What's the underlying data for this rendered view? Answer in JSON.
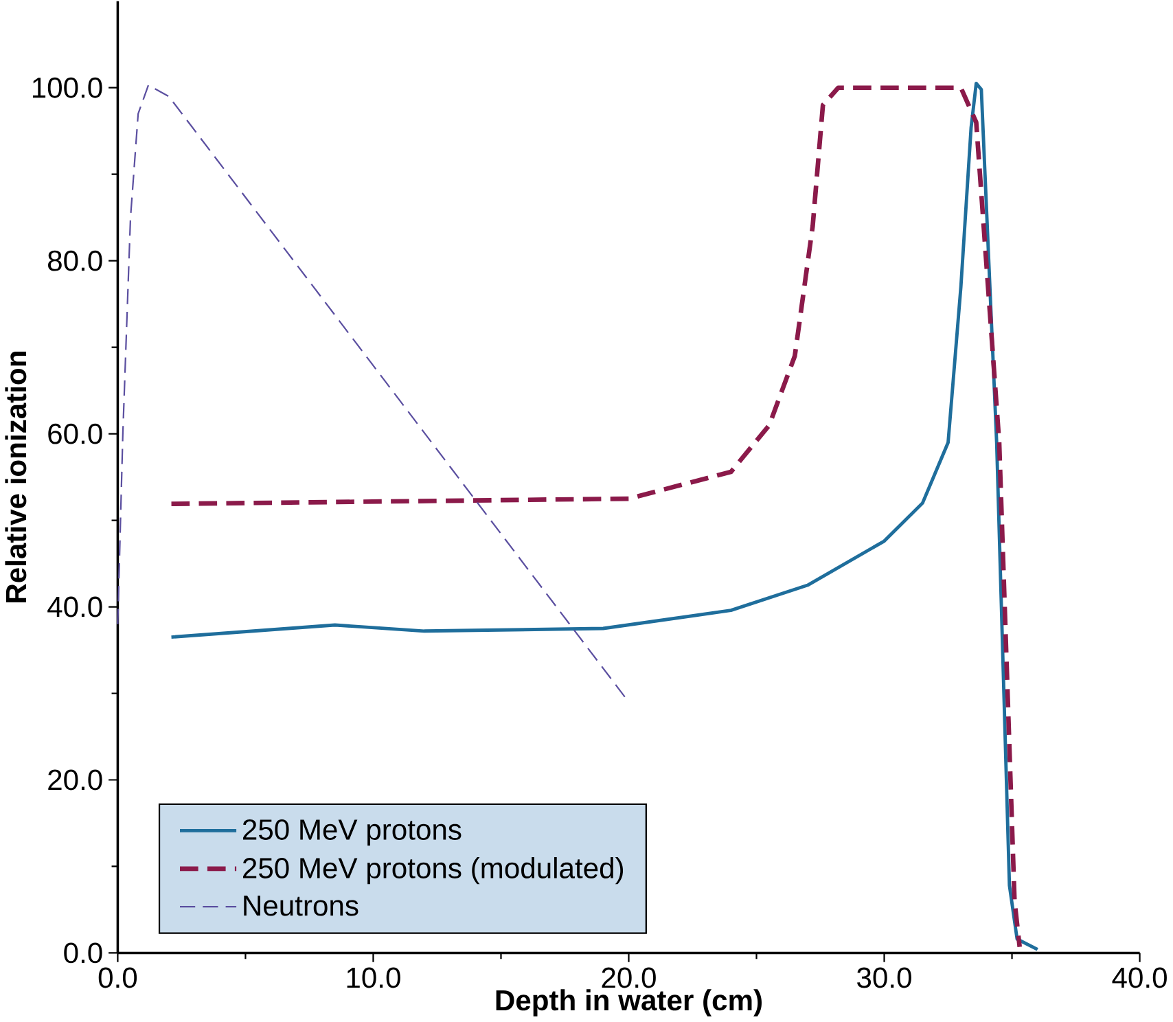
{
  "chart_data": {
    "type": "line",
    "xlabel": "Depth in water (cm)",
    "ylabel": "Relative ionization",
    "xlim": [
      0,
      40
    ],
    "ylim": [
      0,
      110
    ],
    "xticks": [
      {
        "value": 0,
        "label": "0.0"
      },
      {
        "value": 10,
        "label": "10.0"
      },
      {
        "value": 20,
        "label": "20.0"
      },
      {
        "value": 30,
        "label": "30.0"
      },
      {
        "value": 40,
        "label": "40.0"
      }
    ],
    "yticks": [
      {
        "value": 0,
        "label": "0.0"
      },
      {
        "value": 20,
        "label": "20.0"
      },
      {
        "value": 40,
        "label": "40.0"
      },
      {
        "value": 60,
        "label": "60.0"
      },
      {
        "value": 80,
        "label": "80.0"
      },
      {
        "value": 100,
        "label": "100.0"
      }
    ],
    "legend": "bottom left",
    "grid": false,
    "marker": "none",
    "series": [
      {
        "name": "250 MeV protons",
        "color": "#1f6e9c",
        "line_style": "solid",
        "x": [
          2.1,
          8.5,
          12,
          19,
          24,
          27,
          30,
          31.5,
          32.5,
          33,
          33.4,
          33.6,
          33.8,
          34.4,
          34.9,
          35.2,
          36
        ],
        "values": [
          36.5,
          37.9,
          37.2,
          37.5,
          39.6,
          42.5,
          47.6,
          52,
          59,
          77,
          95.4,
          100.5,
          99.8,
          59,
          7.8,
          1.6,
          0.4
        ]
      },
      {
        "name": "250 MeV protons (modulated)",
        "color": "#8b1a4a",
        "line_style": "dashed",
        "x": [
          2.1,
          20,
          24,
          25.5,
          26.5,
          27.2,
          27.6,
          28.2,
          33,
          33.6,
          34.5,
          35.1,
          35.3
        ],
        "values": [
          51.9,
          52.5,
          55.6,
          61,
          69,
          84,
          98,
          100,
          100,
          96,
          59,
          6,
          0.7
        ]
      },
      {
        "name": "Neutrons",
        "color": "#5b4fa0",
        "line_style": "dashed",
        "x": [
          0,
          0.2,
          0.5,
          0.8,
          1.2,
          2,
          20
        ],
        "values": [
          38,
          60,
          85,
          97,
          100.3,
          99,
          29
        ]
      }
    ]
  }
}
